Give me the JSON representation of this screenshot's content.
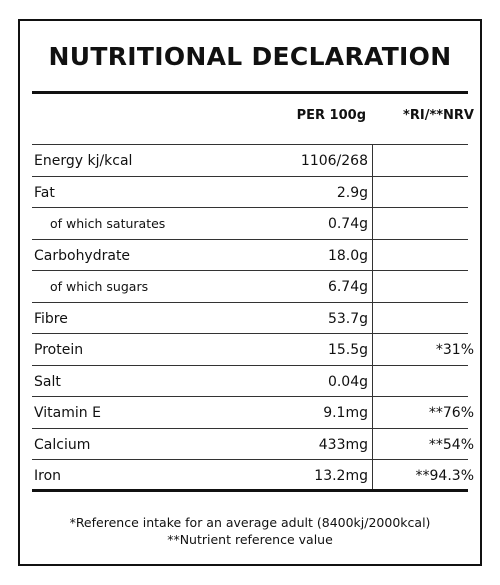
{
  "title": "NUTRITIONAL DECLARATION",
  "headers": {
    "per100": "PER 100g",
    "ri": "*RI/**NRV"
  },
  "rows": [
    {
      "name": "Energy kj/kcal",
      "value": "1106/268",
      "ri": "",
      "sub": false
    },
    {
      "name": "Fat",
      "value": "2.9g",
      "ri": "",
      "sub": false
    },
    {
      "name": "of which saturates",
      "value": "0.74g",
      "ri": "",
      "sub": true
    },
    {
      "name": "Carbohydrate",
      "value": "18.0g",
      "ri": "",
      "sub": false
    },
    {
      "name": "of which sugars",
      "value": "6.74g",
      "ri": "",
      "sub": true
    },
    {
      "name": "Fibre",
      "value": "53.7g",
      "ri": "",
      "sub": false
    },
    {
      "name": "Protein",
      "value": "15.5g",
      "ri": "*31%",
      "sub": false
    },
    {
      "name": "Salt",
      "value": "0.04g",
      "ri": "",
      "sub": false
    },
    {
      "name": "Vitamin E",
      "value": "9.1mg",
      "ri": "**76%",
      "sub": false
    },
    {
      "name": "Calcium",
      "value": "433mg",
      "ri": "**54%",
      "sub": false
    },
    {
      "name": "Iron",
      "value": "13.2mg",
      "ri": "**94.3%",
      "sub": false
    }
  ],
  "footnotes": {
    "reference_intake": "*Reference intake for an average adult (8400kj/2000kcal)",
    "nrv": "**Nutrient reference value"
  }
}
